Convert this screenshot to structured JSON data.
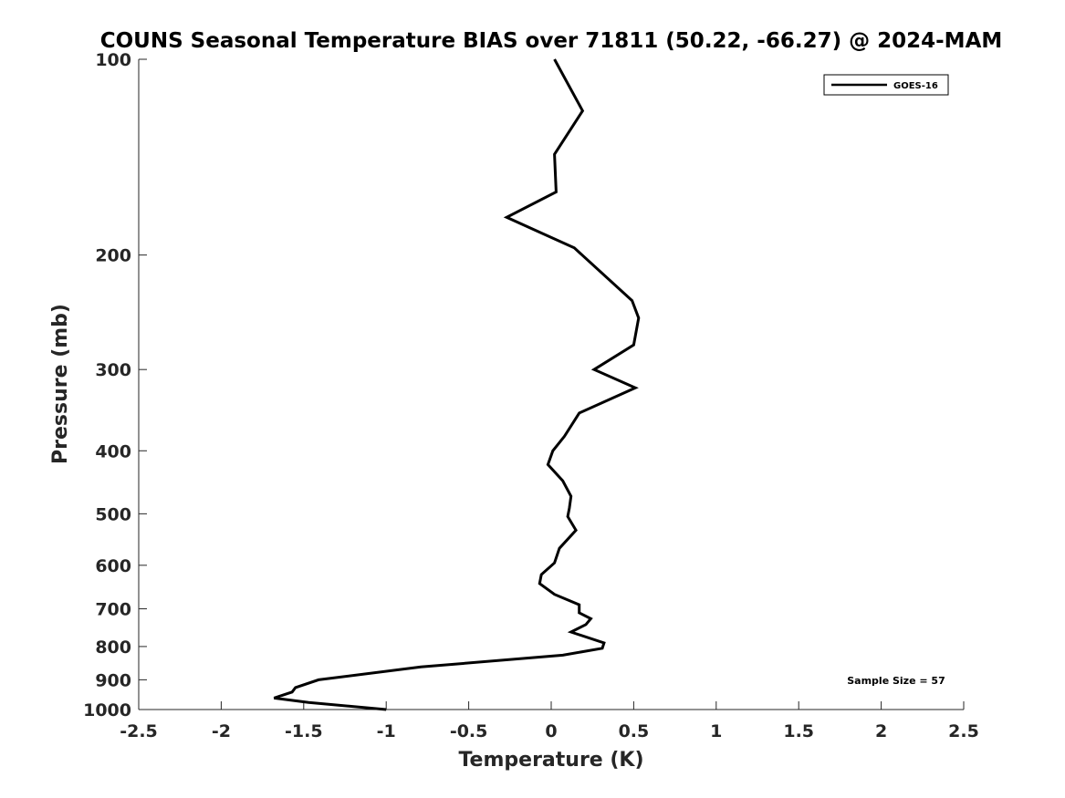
{
  "chart_data": {
    "type": "line",
    "title": "COUNS Seasonal Temperature BIAS over 71811 (50.22, -66.27) @ 2024-MAM",
    "xlabel": "Temperature (K)",
    "ylabel": "Pressure (mb)",
    "xlim": [
      -2.5,
      2.5
    ],
    "ylim": [
      100,
      1000
    ],
    "y_scale": "log",
    "y_reversed": true,
    "x_ticks": [
      "-2.5",
      "-2",
      "-1.5",
      "-1",
      "-0.5",
      "0",
      "0.5",
      "1",
      "1.5",
      "2",
      "2.5"
    ],
    "x_tick_values": [
      -2.5,
      -2,
      -1.5,
      -1,
      -0.5,
      0,
      0.5,
      1,
      1.5,
      2,
      2.5
    ],
    "y_ticks": [
      "100",
      "200",
      "300",
      "400",
      "500",
      "600",
      "700",
      "800",
      "900",
      "1000"
    ],
    "y_tick_values": [
      100,
      200,
      300,
      400,
      500,
      600,
      700,
      800,
      900,
      1000
    ],
    "grid": false,
    "legend_position": "top-right",
    "annotation": "Sample Size = 57",
    "series": [
      {
        "name": "GOES-16",
        "color": "#000000",
        "x": [
          0.02,
          0.19,
          0.02,
          0.03,
          -0.27,
          0.14,
          0.49,
          0.53,
          0.5,
          0.26,
          0.51,
          0.17,
          0.08,
          0.01,
          -0.02,
          0.07,
          0.12,
          0.11,
          0.1,
          0.15,
          0.05,
          0.02,
          -0.06,
          -0.07,
          0.02,
          0.17,
          0.17,
          0.24,
          0.21,
          0.12,
          0.32,
          0.31,
          0.07,
          -0.79,
          -1.41,
          -1.55,
          -1.57,
          -1.68,
          -1.47,
          -1.0
        ],
        "y": [
          100,
          120,
          140,
          160,
          175,
          195,
          235,
          250,
          275,
          300,
          320,
          350,
          380,
          400,
          420,
          445,
          470,
          490,
          505,
          530,
          565,
          595,
          620,
          640,
          665,
          690,
          710,
          725,
          740,
          760,
          790,
          805,
          825,
          860,
          900,
          925,
          940,
          960,
          975,
          1000
        ]
      }
    ]
  }
}
